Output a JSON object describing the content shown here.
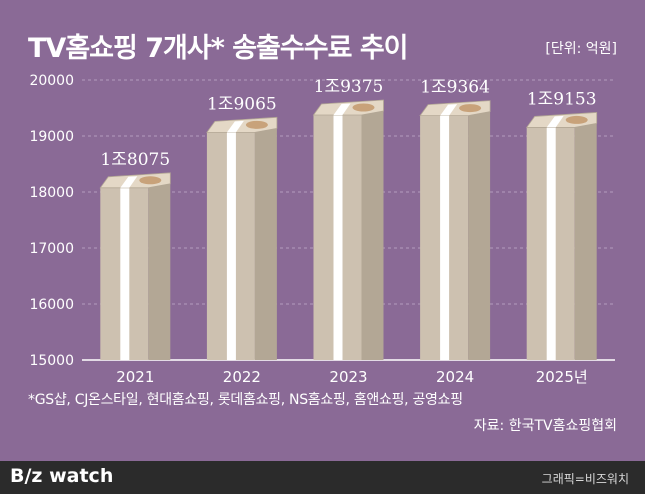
{
  "title": "TV홈쇼핑 7개사* 송출수수료 추이",
  "unit": "[단위: 억원]",
  "footnote": "*GS샵, CJ온스타일, 현대홈쇼핑, 롯데홈쇼핑, NS홈쇼핑, 홈앤쇼핑, 공영쇼핑",
  "source": "자료: 한국TV홈쇼핑협회",
  "footer": {
    "logo": "B/z watch",
    "credit": "그래픽=비즈워치"
  },
  "colors": {
    "background": "#8a6a96",
    "bar": "#cbbfae",
    "band": "#ffffff",
    "grid": "#b49cbd",
    "footer": "#2b2b2b"
  },
  "chart_data": {
    "type": "bar",
    "title": "TV홈쇼핑 7개사* 송출수수료 추이",
    "xlabel": "",
    "ylabel": "",
    "ylim": [
      15000,
      20000
    ],
    "yticks": [
      15000,
      16000,
      17000,
      18000,
      19000,
      20000
    ],
    "ytick_labels": [
      "15000",
      "16000",
      "17000",
      "18000",
      "19000",
      "20000"
    ],
    "grid": true,
    "categories": [
      "2021",
      "2022",
      "2023",
      "2024",
      "2025년"
    ],
    "values": [
      18075,
      19065,
      19375,
      19364,
      19153
    ],
    "value_labels": [
      "1조8075",
      "1조9065",
      "1조9375",
      "1조9364",
      "1조9153"
    ]
  }
}
